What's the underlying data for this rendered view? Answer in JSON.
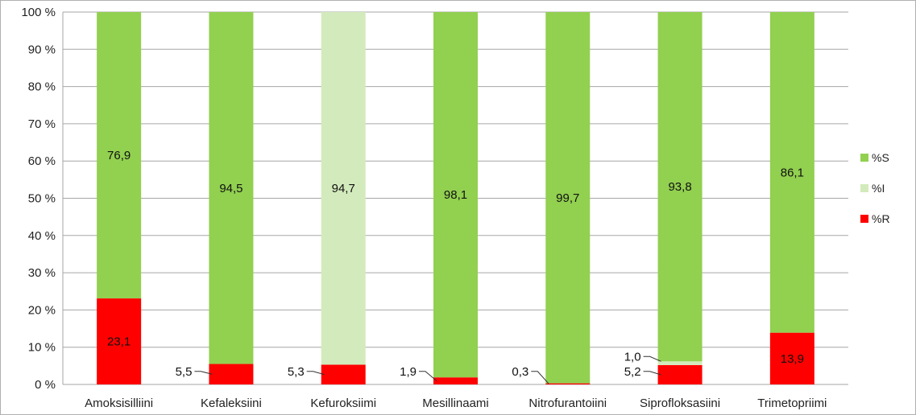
{
  "chart_data": {
    "type": "bar",
    "stacked": true,
    "categories": [
      "Amoksisilliini",
      "Kefaleksiini",
      "Kefuroksiimi",
      "Mesillinaami",
      "Nitrofurantoiini",
      "Siprofloksasiini",
      "Trimetopriimi"
    ],
    "series": [
      {
        "name": "%R",
        "color": "#ff0000",
        "values": [
          23.1,
          5.5,
          5.3,
          1.9,
          0.3,
          5.2,
          13.9
        ],
        "labels": [
          "23,1",
          "5,5",
          "5,3",
          "1,9",
          "0,3",
          "5,2",
          "13,9"
        ]
      },
      {
        "name": "%I",
        "color": "#d3ebbc",
        "values": [
          0,
          0,
          94.7,
          0,
          0,
          1.0,
          0
        ],
        "labels": [
          "",
          "",
          "94,7",
          "",
          "",
          "1,0",
          ""
        ]
      },
      {
        "name": "%S",
        "color": "#92d050",
        "values": [
          76.9,
          94.5,
          0,
          98.1,
          99.7,
          93.8,
          86.1
        ],
        "labels": [
          "76,9",
          "94,5",
          "",
          "98,1",
          "99,7",
          "93,8",
          "86,1"
        ]
      }
    ],
    "ylim": [
      0,
      100
    ],
    "yticks": [
      "0 %",
      "10 %",
      "20 %",
      "30 %",
      "40 %",
      "50 %",
      "60 %",
      "70 %",
      "80 %",
      "90 %",
      "100 %"
    ],
    "grid": true,
    "legend": {
      "position": "right",
      "entries": [
        "%S",
        "%I",
        "%R"
      ]
    }
  }
}
